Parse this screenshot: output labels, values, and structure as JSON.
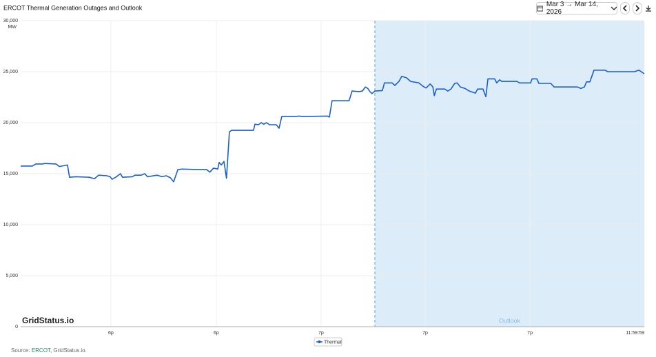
{
  "chart_data": {
    "type": "line",
    "title": "ERCOT Thermal Generation Outages and Outlook",
    "date_range": "Mar 3 → Mar 14, 2026",
    "y_label": "MW",
    "watermark": "GridStatus.io",
    "source": {
      "prefix": "Source:",
      "link": "ERCOT",
      "suffix": ", GridStatus.io."
    },
    "outlook": {
      "start": 170.4,
      "label": "Outlook",
      "color": "#dcecf9",
      "line_color": "#7ec3e6"
    },
    "xlim": [
      0,
      300
    ],
    "xticks": [
      {
        "value": 43.4,
        "label": "6p"
      },
      {
        "value": 94.1,
        "label": "6p"
      },
      {
        "value": 144.5,
        "label": "7p"
      },
      {
        "value": 194.6,
        "label": "7p"
      },
      {
        "value": 245,
        "label": "7p"
      },
      {
        "value": 300,
        "label": "11:59:59"
      }
    ],
    "ylim": [
      0,
      30000
    ],
    "yticks": [
      0,
      {
        "value": 5000,
        "label": "5,000"
      },
      {
        "value": 10000,
        "label": "10,000"
      },
      {
        "value": 15000,
        "label": "15,000"
      },
      {
        "value": 20000,
        "label": "20,000"
      },
      {
        "value": 25000,
        "label": "25,000"
      },
      {
        "value": 30000,
        "label": "30,000"
      }
    ],
    "grid": true,
    "legend": "bottom",
    "x": [
      0,
      5.6,
      7.3,
      10.6,
      11.6,
      17,
      18.6,
      22.5,
      23.5,
      26.5,
      33,
      35.5,
      37.5,
      41.4,
      43,
      44,
      45.7,
      48,
      49,
      53.7,
      55,
      58,
      59.7,
      61,
      65.6,
      68,
      70,
      72,
      73.6,
      75.6,
      77.6,
      86,
      89.5,
      91,
      92.8,
      94.8,
      95.5,
      96.5,
      97.8,
      99,
      100.4,
      101.5,
      112,
      112.7,
      114.4,
      115.7,
      117,
      118.3,
      119.7,
      123,
      124.3,
      125.6,
      132.6,
      133.6,
      136,
      147.5,
      148.5,
      149.8,
      158,
      159.4,
      162.8,
      164.4,
      165.8,
      167,
      168,
      169,
      170.4,
      174,
      175,
      178.7,
      180,
      182,
      183.3,
      185.6,
      187.6,
      191.6,
      193.3,
      195,
      197,
      198.3,
      199,
      200,
      204,
      205.5,
      207,
      208.8,
      210,
      211.5,
      213.8,
      215.8,
      218.8,
      219.8,
      222.4,
      223.8,
      224.8,
      228,
      229,
      230.4,
      231.4,
      238.7,
      240,
      245.3,
      246,
      248.3,
      249.3,
      255,
      256.6,
      267.8,
      269.5,
      271.2,
      272.2,
      273.8,
      275.8,
      281.1,
      282.4,
      295.3,
      297.4,
      300
    ],
    "series": [
      {
        "name": "Thermal",
        "color": "#1a5fd0",
        "values": [
          15750,
          15750,
          15950,
          15950,
          16000,
          15950,
          15700,
          15850,
          14650,
          14700,
          14650,
          14500,
          14850,
          14800,
          14700,
          14450,
          14650,
          15000,
          14650,
          14700,
          14850,
          14850,
          15000,
          14700,
          14850,
          14700,
          14800,
          14600,
          14200,
          15400,
          15450,
          15400,
          15400,
          15150,
          15550,
          15450,
          16100,
          15850,
          16200,
          14550,
          19100,
          19250,
          19250,
          19850,
          19800,
          20000,
          19850,
          20000,
          19800,
          19800,
          19450,
          20600,
          20600,
          20650,
          20600,
          20650,
          20550,
          22150,
          22150,
          23100,
          23050,
          23100,
          23500,
          23350,
          23050,
          22850,
          23100,
          23150,
          23900,
          23900,
          23650,
          24050,
          24550,
          24400,
          24050,
          23900,
          23600,
          23400,
          23800,
          23500,
          22650,
          23300,
          23300,
          23100,
          23300,
          23850,
          23900,
          23500,
          23350,
          23100,
          22900,
          23300,
          23300,
          22550,
          24300,
          24300,
          23900,
          24200,
          24050,
          24050,
          23900,
          23900,
          24300,
          24300,
          23850,
          23850,
          23500,
          23500,
          23350,
          23500,
          24000,
          24000,
          25150,
          25150,
          25000,
          25000,
          25150,
          24800
        ]
      }
    ]
  }
}
